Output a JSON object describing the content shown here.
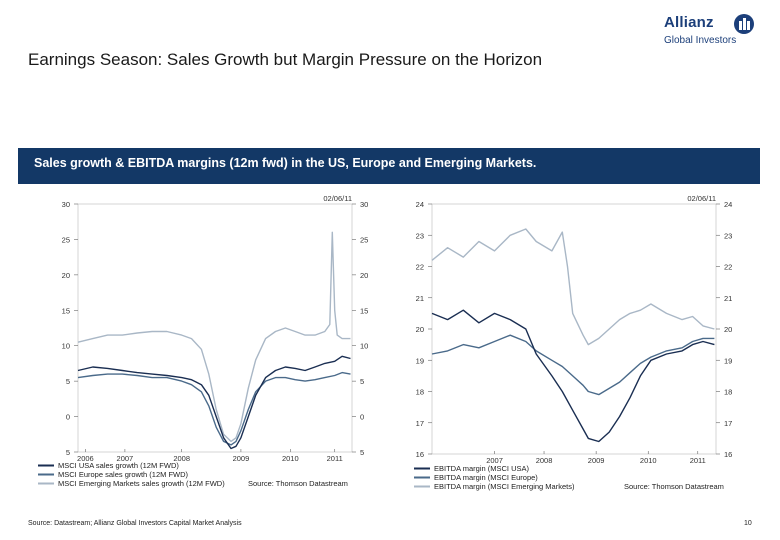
{
  "header": {
    "title": "Earnings Season: Sales Growth but Margin Pressure on the Horizon",
    "logo_word": "Allianz",
    "logo_sub": "Global Investors",
    "logo_mark_icon": "allianz-eagle-icon"
  },
  "banner": {
    "text": "Sales growth & EBITDA margins (12m fwd) in the US, Europe and Emerging Markets."
  },
  "footer": {
    "source": "Source: Datastream; Allianz Global Investors Capital Market Analysis",
    "page_number": "10"
  },
  "colors": {
    "banner": "#133866",
    "usa": "#1a2e52",
    "europe": "#4a6a8a",
    "em": "#a9b7c6"
  },
  "chart_data": [
    {
      "type": "line",
      "date_label": "02/06/11",
      "x_tick_labels": [
        "2006",
        "2007",
        "2008",
        "2009",
        "2010",
        "2011"
      ],
      "ylim": [
        -5,
        30
      ],
      "y_ticks": [
        -5,
        0,
        5,
        10,
        15,
        20,
        25,
        30
      ],
      "y_tick_labels": [
        "5",
        "0",
        "5",
        "10",
        "15",
        "20",
        "25",
        "30"
      ],
      "legend": [
        "MSCI USA sales growth (12M FWD)",
        "MSCI Europe sales growth (12M FWD)",
        "MSCI Emerging Markets sales growth (12M FWD)"
      ],
      "source": "Source: Thomson Datastream",
      "series": [
        {
          "name": "MSCI USA sales growth (12M FWD)",
          "color": "#1a2e52",
          "x": [
            2005.9,
            2006.2,
            2006.5,
            2006.8,
            2007.1,
            2007.4,
            2007.7,
            2008.0,
            2008.2,
            2008.4,
            2008.55,
            2008.7,
            2008.85,
            2009.0,
            2009.1,
            2009.2,
            2009.35,
            2009.5,
            2009.7,
            2009.9,
            2010.1,
            2010.3,
            2010.5,
            2010.7,
            2010.9,
            2011.1,
            2011.25,
            2011.42
          ],
          "y": [
            6.5,
            7,
            6.8,
            6.5,
            6.2,
            6,
            5.8,
            5.5,
            5.2,
            4.5,
            3,
            0,
            -3,
            -4.5,
            -4.2,
            -3,
            0,
            3,
            5.5,
            6.5,
            7,
            6.8,
            6.5,
            7,
            7.5,
            7.8,
            8.5,
            8.2
          ]
        },
        {
          "name": "MSCI Europe sales growth (12M FWD)",
          "color": "#4a6a8a",
          "x": [
            2005.9,
            2006.2,
            2006.5,
            2006.8,
            2007.1,
            2007.4,
            2007.7,
            2008.0,
            2008.2,
            2008.4,
            2008.55,
            2008.7,
            2008.85,
            2009.0,
            2009.1,
            2009.2,
            2009.35,
            2009.5,
            2009.7,
            2009.9,
            2010.1,
            2010.3,
            2010.5,
            2010.7,
            2010.9,
            2011.1,
            2011.25,
            2011.42
          ],
          "y": [
            5.5,
            5.8,
            6,
            6,
            5.8,
            5.5,
            5.5,
            5,
            4.5,
            3.5,
            1.5,
            -1.5,
            -3.5,
            -4,
            -3.5,
            -2,
            1,
            3.5,
            5,
            5.5,
            5.5,
            5.2,
            5,
            5.2,
            5.5,
            5.8,
            6.2,
            6
          ]
        },
        {
          "name": "MSCI Emerging Markets sales growth (12M FWD)",
          "color": "#a9b7c6",
          "x": [
            2005.9,
            2006.2,
            2006.5,
            2006.8,
            2007.1,
            2007.4,
            2007.7,
            2008.0,
            2008.2,
            2008.4,
            2008.55,
            2008.7,
            2008.85,
            2009.0,
            2009.1,
            2009.2,
            2009.35,
            2009.5,
            2009.7,
            2009.9,
            2010.1,
            2010.3,
            2010.5,
            2010.7,
            2010.9,
            2011.0,
            2011.05,
            2011.1,
            2011.15,
            2011.25,
            2011.42
          ],
          "y": [
            10.5,
            11,
            11.5,
            11.5,
            11.8,
            12,
            12,
            11.5,
            11,
            9.5,
            6,
            1,
            -2.5,
            -3.5,
            -3,
            -1,
            4,
            8,
            11,
            12,
            12.5,
            12,
            11.5,
            11.5,
            12,
            13,
            26,
            15,
            11.5,
            11,
            11
          ]
        }
      ]
    },
    {
      "type": "line",
      "date_label": "02/06/11",
      "x_tick_labels": [
        "2007",
        "2008",
        "2009",
        "2010",
        "2011"
      ],
      "ylim": [
        16,
        24
      ],
      "y_ticks": [
        16,
        17,
        18,
        19,
        20,
        21,
        22,
        23,
        24
      ],
      "y_tick_labels": [
        "16",
        "17",
        "18",
        "19",
        "20",
        "21",
        "22",
        "23",
        "24"
      ],
      "legend": [
        "EBITDA margin (MSCI USA)",
        "EBITDA margin (MSCI Europe)",
        "EBITDA margin (MSCI Emerging Markets)"
      ],
      "source": "Source: Thomson Datastream",
      "series": [
        {
          "name": "EBITDA margin (MSCI USA)",
          "color": "#1a2e52",
          "x": [
            2006.0,
            2006.3,
            2006.6,
            2006.9,
            2007.2,
            2007.5,
            2007.8,
            2008.0,
            2008.3,
            2008.5,
            2008.7,
            2008.9,
            2009.0,
            2009.2,
            2009.4,
            2009.6,
            2009.8,
            2010.0,
            2010.2,
            2010.5,
            2010.8,
            2011.0,
            2011.2,
            2011.42
          ],
          "y": [
            20.5,
            20.3,
            20.6,
            20.2,
            20.5,
            20.3,
            20.0,
            19.2,
            18.5,
            18.0,
            17.4,
            16.8,
            16.5,
            16.4,
            16.7,
            17.2,
            17.8,
            18.5,
            19.0,
            19.2,
            19.3,
            19.5,
            19.6,
            19.5
          ]
        },
        {
          "name": "EBITDA margin (MSCI Europe)",
          "color": "#4a6a8a",
          "x": [
            2006.0,
            2006.3,
            2006.6,
            2006.9,
            2007.2,
            2007.5,
            2007.8,
            2008.0,
            2008.3,
            2008.5,
            2008.7,
            2008.9,
            2009.0,
            2009.2,
            2009.4,
            2009.6,
            2009.8,
            2010.0,
            2010.2,
            2010.5,
            2010.8,
            2011.0,
            2011.2,
            2011.42
          ],
          "y": [
            19.2,
            19.3,
            19.5,
            19.4,
            19.6,
            19.8,
            19.6,
            19.3,
            19.0,
            18.8,
            18.5,
            18.2,
            18.0,
            17.9,
            18.1,
            18.3,
            18.6,
            18.9,
            19.1,
            19.3,
            19.4,
            19.6,
            19.7,
            19.7
          ]
        },
        {
          "name": "EBITDA margin (MSCI Emerging Markets)",
          "color": "#a9b7c6",
          "x": [
            2006.0,
            2006.3,
            2006.6,
            2006.9,
            2007.2,
            2007.5,
            2007.8,
            2008.0,
            2008.3,
            2008.5,
            2008.6,
            2008.7,
            2008.9,
            2009.0,
            2009.2,
            2009.4,
            2009.6,
            2009.8,
            2010.0,
            2010.2,
            2010.5,
            2010.8,
            2011.0,
            2011.2,
            2011.42
          ],
          "y": [
            22.2,
            22.6,
            22.3,
            22.8,
            22.5,
            23.0,
            23.2,
            22.8,
            22.5,
            23.1,
            22.0,
            20.5,
            19.8,
            19.5,
            19.7,
            20.0,
            20.3,
            20.5,
            20.6,
            20.8,
            20.5,
            20.3,
            20.4,
            20.1,
            20.0
          ]
        }
      ]
    }
  ]
}
